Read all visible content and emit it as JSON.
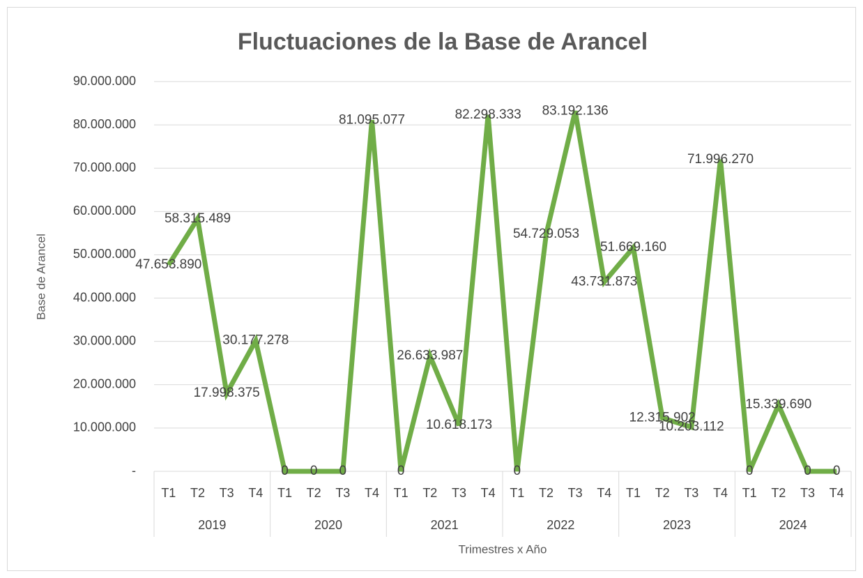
{
  "chart_data": {
    "type": "line",
    "title": "Fluctuaciones de la Base de Arancel",
    "x_axis_label": "Trimestres x Año",
    "y_axis_label": "Base de Arancel",
    "categories": [
      "T1",
      "T2",
      "T3",
      "T4",
      "T1",
      "T2",
      "T3",
      "T4",
      "T1",
      "T2",
      "T3",
      "T4",
      "T1",
      "T2",
      "T3",
      "T4",
      "T1",
      "T2",
      "T3",
      "T4",
      "T1",
      "T2",
      "T3",
      "T4"
    ],
    "groups": [
      "2019",
      "2020",
      "2021",
      "2022",
      "2023",
      "2024"
    ],
    "color": "#70ad47",
    "values": [
      47653890,
      58315489,
      17998375,
      30177278,
      0,
      0,
      0,
      81095077,
      0,
      26633987,
      10618173,
      82298333,
      0,
      54729053,
      83192136,
      43731873,
      51669160,
      12315902,
      10203112,
      71996270,
      0,
      15339690,
      0,
      0
    ],
    "value_labels": [
      "47.653.890",
      "58.315.489",
      "17.998.375",
      "30.177.278",
      "0",
      "0",
      "0",
      "81.095.077",
      "0",
      "26.633.987",
      "10.618.173",
      "82.298.333",
      "0",
      "54.729.053",
      "83.192.136",
      "43.731.873",
      "51.669.160",
      "12.315.902",
      "10.203.112",
      "71.996.270",
      "0",
      "15.339.690",
      "0",
      "0"
    ],
    "ylim": [
      0,
      90000000
    ],
    "yticks": [
      {
        "value": 0,
        "label": "-"
      },
      {
        "value": 10000000,
        "label": "10.000.000"
      },
      {
        "value": 20000000,
        "label": "20.000.000"
      },
      {
        "value": 30000000,
        "label": "30.000.000"
      },
      {
        "value": 40000000,
        "label": "40.000.000"
      },
      {
        "value": 50000000,
        "label": "50.000.000"
      },
      {
        "value": 60000000,
        "label": "60.000.000"
      },
      {
        "value": 70000000,
        "label": "70.000.000"
      },
      {
        "value": 80000000,
        "label": "80.000.000"
      },
      {
        "value": 90000000,
        "label": "90.000.000"
      }
    ],
    "grid": true
  }
}
